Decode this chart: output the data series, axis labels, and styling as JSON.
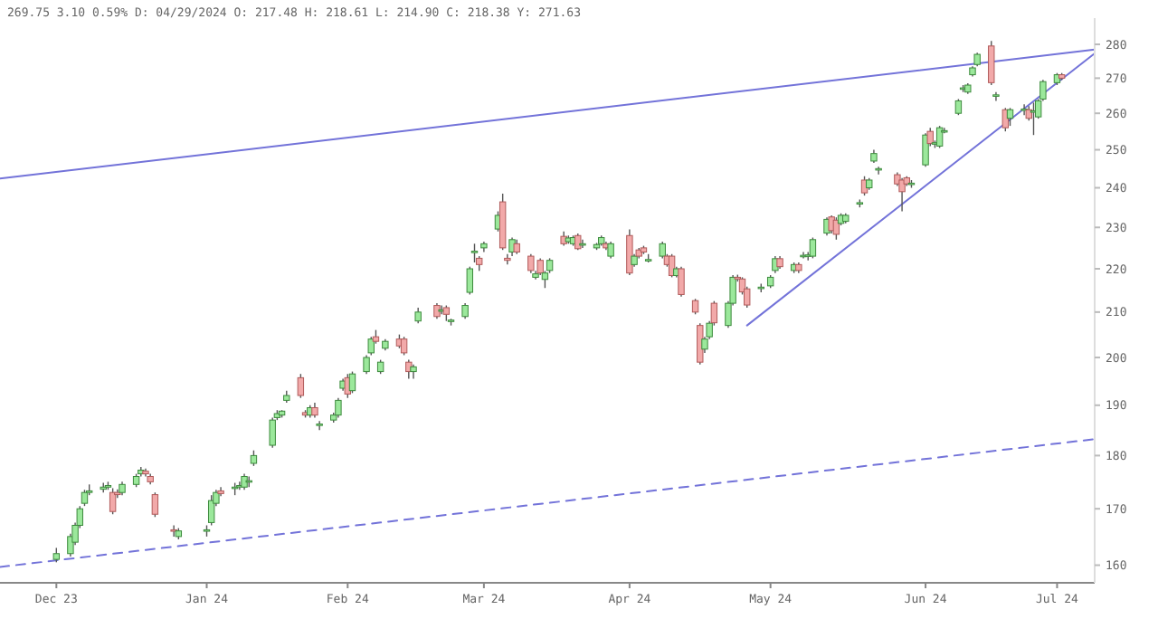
{
  "chart_data": {
    "type": "candlestick",
    "title": "269.75 3.10 0.59% D: 04/29/2024 O: 217.48 H: 218.61 L: 214.90 C: 218.38 Y: 271.63",
    "log": "y",
    "grid": false,
    "xlim": [
      "2023-11-19",
      "2024-07-09"
    ],
    "ylim": [
      157,
      288
    ],
    "xticks": [
      {
        "value": "2023-12-01",
        "label": "Dec 23"
      },
      {
        "value": "2024-01-02",
        "label": "Jan 24"
      },
      {
        "value": "2024-02-01",
        "label": "Feb 24"
      },
      {
        "value": "2024-03-01",
        "label": "Mar 24"
      },
      {
        "value": "2024-04-01",
        "label": "Apr 24"
      },
      {
        "value": "2024-05-01",
        "label": "May 24"
      },
      {
        "value": "2024-06-03",
        "label": "Jun 24"
      },
      {
        "value": "2024-07-01",
        "label": "Jul 24"
      }
    ],
    "yticks": [
      160,
      170,
      180,
      190,
      200,
      210,
      220,
      230,
      240,
      250,
      260,
      270,
      280
    ],
    "x": [
      "2023-12-01",
      "2023-12-04",
      "2023-12-05",
      "2023-12-06",
      "2023-12-07",
      "2023-12-08",
      "2023-12-11",
      "2023-12-12",
      "2023-12-13",
      "2023-12-14",
      "2023-12-15",
      "2023-12-18",
      "2023-12-19",
      "2023-12-20",
      "2023-12-21",
      "2023-12-22",
      "2023-12-26",
      "2023-12-27",
      "2024-01-02",
      "2024-01-03",
      "2024-01-04",
      "2024-01-05",
      "2024-01-08",
      "2024-01-09",
      "2024-01-10",
      "2024-01-11",
      "2024-01-12",
      "2024-01-16",
      "2024-01-17",
      "2024-01-18",
      "2024-01-19",
      "2024-01-22",
      "2024-01-23",
      "2024-01-24",
      "2024-01-25",
      "2024-01-26",
      "2024-01-29",
      "2024-01-30",
      "2024-01-31",
      "2024-02-01",
      "2024-02-02",
      "2024-02-05",
      "2024-02-06",
      "2024-02-07",
      "2024-02-08",
      "2024-02-09",
      "2024-02-12",
      "2024-02-13",
      "2024-02-14",
      "2024-02-15",
      "2024-02-16",
      "2024-02-20",
      "2024-02-21",
      "2024-02-22",
      "2024-02-23",
      "2024-02-26",
      "2024-02-27",
      "2024-02-28",
      "2024-02-29",
      "2024-03-01",
      "2024-03-04",
      "2024-03-05",
      "2024-03-06",
      "2024-03-07",
      "2024-03-08",
      "2024-03-11",
      "2024-03-12",
      "2024-03-13",
      "2024-03-14",
      "2024-03-15",
      "2024-03-18",
      "2024-03-19",
      "2024-03-20",
      "2024-03-21",
      "2024-03-22",
      "2024-03-25",
      "2024-03-26",
      "2024-03-27",
      "2024-03-28",
      "2024-04-01",
      "2024-04-02",
      "2024-04-03",
      "2024-04-04",
      "2024-04-05",
      "2024-04-08",
      "2024-04-09",
      "2024-04-10",
      "2024-04-11",
      "2024-04-12",
      "2024-04-15",
      "2024-04-16",
      "2024-04-17",
      "2024-04-18",
      "2024-04-19",
      "2024-04-22",
      "2024-04-23",
      "2024-04-24",
      "2024-04-25",
      "2024-04-26",
      "2024-04-29",
      "2024-05-01",
      "2024-05-02",
      "2024-05-03",
      "2024-05-06",
      "2024-05-07",
      "2024-05-08",
      "2024-05-09",
      "2024-05-10",
      "2024-05-13",
      "2024-05-14",
      "2024-05-15",
      "2024-05-16",
      "2024-05-17",
      "2024-05-20",
      "2024-05-21",
      "2024-05-22",
      "2024-05-23",
      "2024-05-24",
      "2024-05-28",
      "2024-05-29",
      "2024-05-30",
      "2024-05-31",
      "2024-06-03",
      "2024-06-04",
      "2024-06-05",
      "2024-06-06",
      "2024-06-07",
      "2024-06-10",
      "2024-06-11",
      "2024-06-12",
      "2024-06-13",
      "2024-06-14",
      "2024-06-17",
      "2024-06-18",
      "2024-06-20",
      "2024-06-21",
      "2024-06-24",
      "2024-06-25",
      "2024-06-26",
      "2024-06-27",
      "2024-06-28",
      "2024-07-01",
      "2024-07-02"
    ],
    "ohlc": [
      [
        161,
        163,
        160.5,
        162
      ],
      [
        162,
        165.5,
        161.5,
        165
      ],
      [
        164,
        167.5,
        163.5,
        167
      ],
      [
        167,
        170.5,
        166.5,
        170
      ],
      [
        171,
        173.5,
        170.5,
        173
      ],
      [
        173,
        174.5,
        172.5,
        173.3
      ],
      [
        173.6,
        174.8,
        173,
        174
      ],
      [
        174,
        175,
        173.5,
        174.3
      ],
      [
        173,
        173.8,
        169,
        169.5
      ],
      [
        173,
        173.6,
        172,
        172.6
      ],
      [
        173,
        175,
        172.5,
        174.5
      ],
      [
        174.5,
        176.5,
        174,
        176
      ],
      [
        176.5,
        177.8,
        176,
        177.2
      ],
      [
        177,
        177.5,
        176,
        176.5
      ],
      [
        176,
        176.5,
        174.5,
        175
      ],
      [
        172.6,
        173,
        168.5,
        169
      ],
      [
        166.2,
        167,
        165,
        166
      ],
      [
        165,
        166.5,
        164.5,
        166
      ],
      [
        166,
        167,
        165,
        166.2
      ],
      [
        167.5,
        172.5,
        167,
        171.5
      ],
      [
        171,
        173.5,
        170.5,
        173
      ],
      [
        173.3,
        174,
        172.3,
        172.8
      ],
      [
        173.8,
        174.8,
        172.5,
        174
      ],
      [
        174.1,
        175,
        173.5,
        174.3
      ],
      [
        174,
        176.5,
        173.5,
        176
      ],
      [
        175,
        176,
        174,
        175.2
      ],
      [
        178.5,
        181,
        178,
        180
      ],
      [
        182,
        187.5,
        181.5,
        187
      ],
      [
        187.5,
        189,
        187,
        188.3
      ],
      [
        188,
        189,
        187.5,
        188.8
      ],
      [
        191,
        193,
        190.5,
        192
      ],
      [
        195.7,
        196.5,
        191.5,
        192
      ],
      [
        188.5,
        189,
        187.5,
        188
      ],
      [
        188,
        190,
        187.5,
        189.5
      ],
      [
        189.5,
        190.5,
        187.5,
        188
      ],
      [
        186,
        186.8,
        185,
        186.2
      ],
      [
        187,
        188.5,
        186.5,
        188
      ],
      [
        188,
        191.5,
        187.5,
        191
      ],
      [
        193.5,
        195.5,
        193,
        195
      ],
      [
        195.7,
        196.5,
        191.5,
        192.3
      ],
      [
        193,
        197,
        192.5,
        196.5
      ],
      [
        197,
        200.5,
        196.5,
        200
      ],
      [
        201,
        204.5,
        200.5,
        204
      ],
      [
        204.5,
        206,
        203,
        203.5
      ],
      [
        197,
        199.5,
        196.5,
        199
      ],
      [
        202,
        204,
        201.5,
        203.5
      ],
      [
        204,
        205,
        202,
        202.5
      ],
      [
        204,
        204.5,
        200.5,
        201
      ],
      [
        199,
        199.5,
        195.5,
        197
      ],
      [
        197,
        198.5,
        195.5,
        198
      ],
      [
        208,
        211,
        207.5,
        210
      ],
      [
        211.5,
        212,
        208.5,
        209
      ],
      [
        210.3,
        211.5,
        209.5,
        210.5
      ],
      [
        211,
        211.5,
        208,
        209.5
      ],
      [
        208,
        208.5,
        207,
        208.2
      ],
      [
        209,
        212,
        208.5,
        211.5
      ],
      [
        214.5,
        220.5,
        214,
        220
      ],
      [
        224,
        226,
        221.5,
        224.2
      ],
      [
        222.5,
        223,
        219.5,
        221
      ],
      [
        225,
        226.5,
        224,
        226
      ],
      [
        229.6,
        234,
        229,
        233
      ],
      [
        236.4,
        238.5,
        224.5,
        225
      ],
      [
        222.5,
        223.5,
        221,
        222
      ],
      [
        224,
        227.5,
        223,
        227
      ],
      [
        226,
        227,
        223.5,
        224
      ],
      [
        223,
        223.5,
        219,
        219.6
      ],
      [
        218,
        219.5,
        217.5,
        218.8
      ],
      [
        222,
        222.5,
        218.5,
        219
      ],
      [
        217.5,
        219.5,
        215.5,
        219
      ],
      [
        219.6,
        222.5,
        219,
        222
      ],
      [
        227.8,
        229,
        225.5,
        226
      ],
      [
        226.5,
        228,
        226,
        227.4
      ],
      [
        226,
        228,
        225.5,
        227.5
      ],
      [
        228,
        228.5,
        224.5,
        224.8
      ],
      [
        225.8,
        227,
        225,
        226
      ],
      [
        225,
        226.2,
        224.5,
        225.8
      ],
      [
        226,
        228,
        225.5,
        227.5
      ],
      [
        226,
        226.5,
        224.5,
        225
      ],
      [
        223,
        226.5,
        222.5,
        226
      ],
      [
        228,
        229.5,
        218.5,
        219
      ],
      [
        221,
        223.5,
        220.5,
        223
      ],
      [
        224.5,
        225,
        222.5,
        223
      ],
      [
        225,
        225.5,
        223.5,
        224
      ],
      [
        222,
        223.5,
        221.5,
        222.2
      ],
      [
        223,
        226.5,
        222.5,
        226
      ],
      [
        223,
        223.5,
        220.5,
        221
      ],
      [
        223,
        223.5,
        218,
        218.4
      ],
      [
        218.4,
        220.5,
        218,
        220
      ],
      [
        220,
        220.5,
        213.5,
        214
      ],
      [
        212.6,
        213,
        209.5,
        210
      ],
      [
        207,
        207.5,
        198.5,
        199
      ],
      [
        201.8,
        204.5,
        201,
        204
      ],
      [
        204.5,
        208,
        204,
        207.5
      ],
      [
        212,
        212.5,
        207,
        207.6
      ],
      [
        207,
        212.5,
        206.5,
        212
      ],
      [
        212,
        218.5,
        211.5,
        218
      ],
      [
        218,
        218.6,
        217,
        217.6
      ],
      [
        217.6,
        218,
        214,
        214.6
      ],
      [
        215.3,
        215.8,
        211,
        211.6
      ],
      [
        215.5,
        216.5,
        214.5,
        215.7
      ],
      [
        216,
        218.5,
        215.5,
        218
      ],
      [
        219.6,
        223,
        219,
        222.4
      ],
      [
        222.4,
        223,
        220,
        220.5
      ],
      [
        219.6,
        221.5,
        219,
        221
      ],
      [
        221,
        221.5,
        219,
        219.6
      ],
      [
        223,
        224,
        222.5,
        223.2
      ],
      [
        223,
        224,
        222,
        223.3
      ],
      [
        223,
        227.5,
        222.5,
        227
      ],
      [
        228.6,
        232.5,
        228,
        232
      ],
      [
        232.6,
        233,
        228.5,
        229.2
      ],
      [
        231.8,
        232.5,
        227,
        228.3
      ],
      [
        231,
        233.5,
        230.5,
        233
      ],
      [
        231.5,
        233.5,
        231,
        233
      ],
      [
        236,
        237,
        235,
        236.2
      ],
      [
        242,
        243,
        238,
        238.7
      ],
      [
        240,
        242.5,
        239.5,
        242
      ],
      [
        247,
        250,
        246.5,
        249
      ],
      [
        244.8,
        245.5,
        243.5,
        245
      ],
      [
        243.4,
        244,
        240.5,
        241
      ],
      [
        242,
        242.5,
        234,
        239
      ],
      [
        242.6,
        243,
        240.5,
        241
      ],
      [
        241,
        242,
        240,
        241.2
      ],
      [
        246,
        254.5,
        245.5,
        254
      ],
      [
        255,
        256,
        251,
        251.7
      ],
      [
        251.7,
        252.5,
        250.5,
        251.9
      ],
      [
        251,
        256.5,
        250.5,
        256
      ],
      [
        255,
        256,
        254.5,
        255.2
      ],
      [
        260,
        264,
        259.5,
        263.5
      ],
      [
        267,
        268,
        266,
        267.2
      ],
      [
        266,
        268.5,
        265.5,
        268
      ],
      [
        271,
        273.5,
        270.5,
        273
      ],
      [
        274,
        277.5,
        273.5,
        277
      ],
      [
        279.5,
        281,
        268,
        268.7
      ],
      [
        265,
        266,
        263.5,
        265.2
      ],
      [
        261,
        261.5,
        255,
        256
      ],
      [
        258.6,
        261.5,
        256.5,
        261
      ],
      [
        261,
        262.5,
        259.5,
        261.2
      ],
      [
        261,
        262,
        258,
        258.6
      ],
      [
        260.5,
        263,
        254,
        260.7
      ],
      [
        259,
        264,
        258.5,
        263.5
      ],
      [
        264,
        269.5,
        263.5,
        269
      ],
      [
        268.7,
        271.5,
        268,
        271
      ],
      [
        271,
        271.5,
        269.5,
        270
      ]
    ],
    "series": [
      {
        "type": "line",
        "color": "#7373d9",
        "line_style": "solid",
        "x": [
          "2023-11-19",
          "2024-07-09"
        ],
        "values": [
          242.4,
          278.4
        ]
      },
      {
        "type": "line",
        "color": "#7373d9",
        "line_style": "solid",
        "x": [
          "2024-04-26",
          "2024-07-09"
        ],
        "values": [
          207,
          277.3
        ]
      },
      {
        "type": "line",
        "color": "#7373d9",
        "line_style": "dashed",
        "x": [
          "2023-11-19",
          "2024-07-09"
        ],
        "values": [
          159.7,
          183.2
        ]
      }
    ]
  }
}
